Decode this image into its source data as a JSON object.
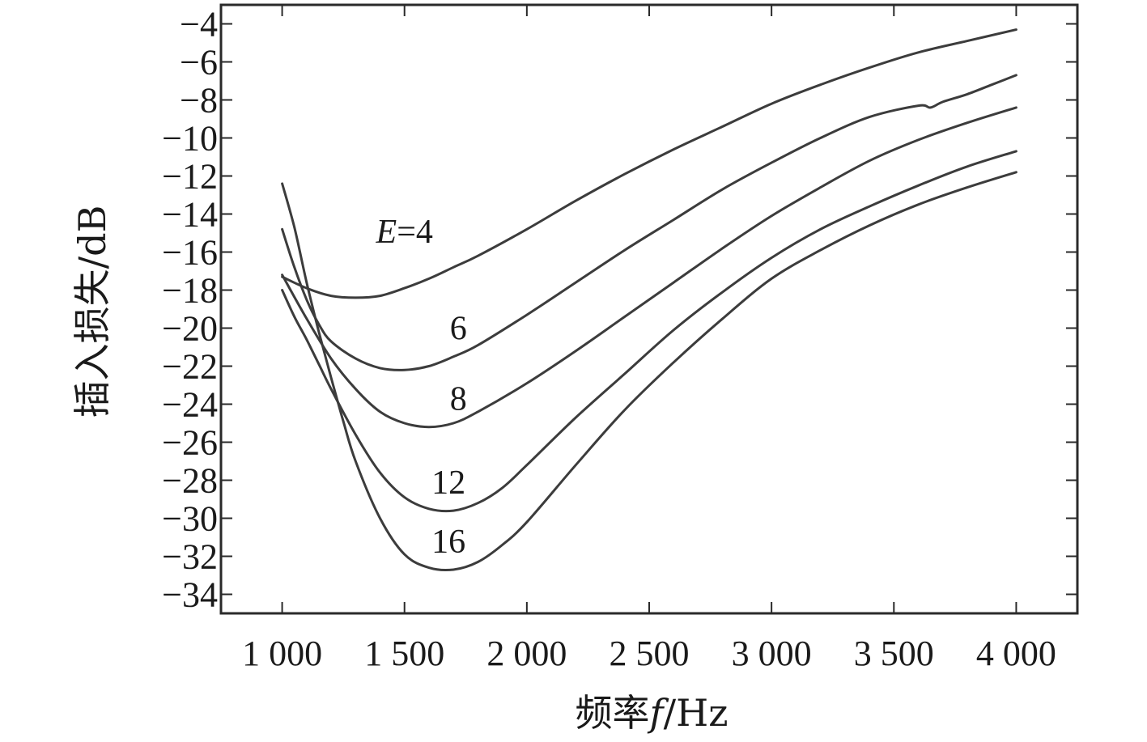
{
  "chart_data": {
    "type": "line",
    "xlabel": {
      "prefix": "频率",
      "var": "f",
      "suffix": "/Hz"
    },
    "ylabel": "插入损失/dB",
    "xlim": [
      750,
      4250
    ],
    "ylim": [
      -35,
      -3
    ],
    "xticks": [
      1000,
      1500,
      2000,
      2500,
      3000,
      3500,
      4000
    ],
    "xtick_labels": [
      "1 000",
      "1 500",
      "2 000",
      "2 500",
      "3 000",
      "3 500",
      "4 000"
    ],
    "yticks": [
      -4,
      -6,
      -8,
      -10,
      -12,
      -14,
      -16,
      -18,
      -20,
      -22,
      -24,
      -26,
      -28,
      -30,
      -32,
      -34
    ],
    "ytick_labels": [
      "−4",
      "−6",
      "−8",
      "−10",
      "−12",
      "−14",
      "−16",
      "−18",
      "−20",
      "−22",
      "−24",
      "−26",
      "−28",
      "−30",
      "−32",
      "−34"
    ],
    "grid": false,
    "series": [
      {
        "label": {
          "var": "E",
          "value": "=4"
        },
        "label_pos": [
          1500,
          -15.5
        ],
        "x": [
          1000,
          1100,
          1200,
          1300,
          1400,
          1500,
          1600,
          1700,
          1800,
          2000,
          2200,
          2400,
          2600,
          2800,
          3000,
          3200,
          3400,
          3600,
          3800,
          4000
        ],
        "y": [
          -17.3,
          -17.9,
          -18.3,
          -18.4,
          -18.3,
          -17.9,
          -17.4,
          -16.8,
          -16.2,
          -14.8,
          -13.3,
          -11.9,
          -10.6,
          -9.4,
          -8.2,
          -7.2,
          -6.3,
          -5.5,
          -4.9,
          -4.3
        ]
      },
      {
        "label": {
          "value": "6"
        },
        "label_pos": [
          1720,
          -20.6
        ],
        "x": [
          1000,
          1050,
          1100,
          1150,
          1200,
          1300,
          1400,
          1500,
          1600,
          1700,
          1800,
          2000,
          2200,
          2400,
          2600,
          2800,
          3000,
          3200,
          3400,
          3600,
          3650,
          3700,
          3800,
          3900,
          4000
        ],
        "y": [
          -14.8,
          -16.8,
          -18.5,
          -19.8,
          -20.7,
          -21.6,
          -22.1,
          -22.2,
          -22.0,
          -21.5,
          -20.9,
          -19.3,
          -17.6,
          -15.9,
          -14.3,
          -12.7,
          -11.3,
          -10.0,
          -8.9,
          -8.3,
          -8.4,
          -8.1,
          -7.7,
          -7.2,
          -6.7
        ]
      },
      {
        "label": {
          "value": "8"
        },
        "label_pos": [
          1720,
          -24.3
        ],
        "x": [
          1000,
          1100,
          1200,
          1300,
          1400,
          1500,
          1600,
          1700,
          1800,
          2000,
          2200,
          2400,
          2600,
          2800,
          3000,
          3200,
          3400,
          3600,
          3800,
          4000
        ],
        "y": [
          -17.2,
          -19.5,
          -21.6,
          -23.2,
          -24.4,
          -25.0,
          -25.2,
          -25.0,
          -24.4,
          -22.9,
          -21.2,
          -19.4,
          -17.6,
          -15.8,
          -14.1,
          -12.6,
          -11.2,
          -10.1,
          -9.2,
          -8.4
        ]
      },
      {
        "label": {
          "value": "12"
        },
        "label_pos": [
          1680,
          -28.7
        ],
        "x": [
          1000,
          1050,
          1100,
          1150,
          1200,
          1300,
          1400,
          1500,
          1600,
          1700,
          1800,
          1900,
          2000,
          2200,
          2400,
          2600,
          2800,
          3000,
          3200,
          3400,
          3600,
          3800,
          4000
        ],
        "y": [
          -18.0,
          -19.4,
          -20.6,
          -21.9,
          -23.2,
          -25.6,
          -27.6,
          -28.9,
          -29.5,
          -29.6,
          -29.2,
          -28.4,
          -27.2,
          -24.7,
          -22.4,
          -20.1,
          -18.1,
          -16.3,
          -14.8,
          -13.6,
          -12.5,
          -11.5,
          -10.7
        ]
      },
      {
        "label": {
          "value": "16"
        },
        "label_pos": [
          1680,
          -31.8
        ],
        "x": [
          1000,
          1050,
          1100,
          1150,
          1200,
          1250,
          1300,
          1400,
          1500,
          1600,
          1700,
          1800,
          1900,
          2000,
          2200,
          2400,
          2600,
          2800,
          3000,
          3200,
          3400,
          3600,
          3800,
          4000
        ],
        "y": [
          -12.4,
          -14.7,
          -17.6,
          -20.2,
          -22.6,
          -24.9,
          -27.0,
          -30.0,
          -31.9,
          -32.6,
          -32.7,
          -32.3,
          -31.4,
          -30.2,
          -27.2,
          -24.3,
          -21.8,
          -19.5,
          -17.4,
          -15.9,
          -14.6,
          -13.5,
          -12.6,
          -11.8
        ]
      }
    ]
  }
}
